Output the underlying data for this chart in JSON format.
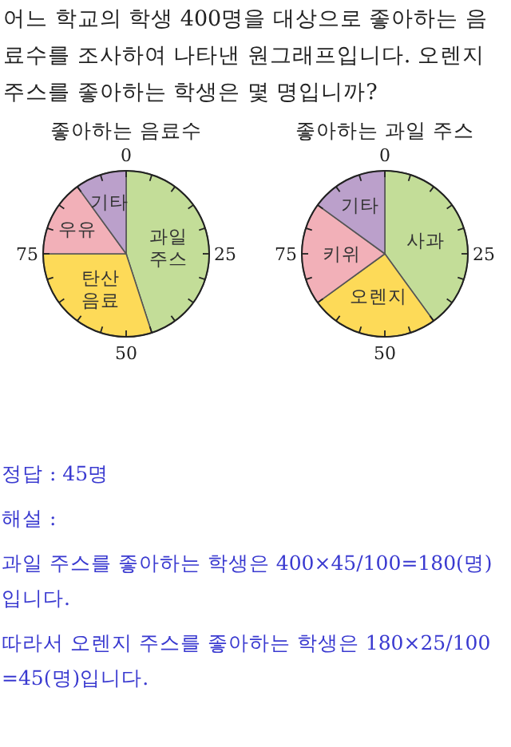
{
  "chart_data": [
    {
      "type": "other",
      "title": "어느 학교의 학생 400명을 대상으로 좋아하는 음료수를 조사하여 나타낸 원그래프입니다. 오렌지 주스를 좋아하는 학생은 몇 명입니까?"
    },
    {
      "type": "pie",
      "title": "좋아하는 음료수",
      "categories": [
        "과일\n주스",
        "탄산\n음료",
        "우유",
        "기타"
      ],
      "values": [
        45,
        30,
        15,
        10
      ],
      "colors": [
        "#c3dd98",
        "#fdda58",
        "#f2b0b8",
        "#bba0cb"
      ],
      "annotations": [
        "0",
        "25",
        "50",
        "75"
      ]
    },
    {
      "type": "pie",
      "title": "좋아하는 과일 주스",
      "categories": [
        "사과",
        "오렌지",
        "키위",
        "기타"
      ],
      "values": [
        40,
        25,
        20,
        15
      ],
      "colors": [
        "#c3dd98",
        "#fdda58",
        "#f2b0b8",
        "#bba0cb"
      ],
      "annotations": [
        "0",
        "25",
        "50",
        "75"
      ]
    },
    {
      "type": "other",
      "annotations": [
        "정답 : 45명",
        "해설 :",
        "과일 주스를 좋아하는 학생은 400×45/100=180(명)입니다.",
        "따라서 오렌지 주스를 좋아하는 학생은 180×25/100 =45(명)입니다."
      ]
    }
  ]
}
